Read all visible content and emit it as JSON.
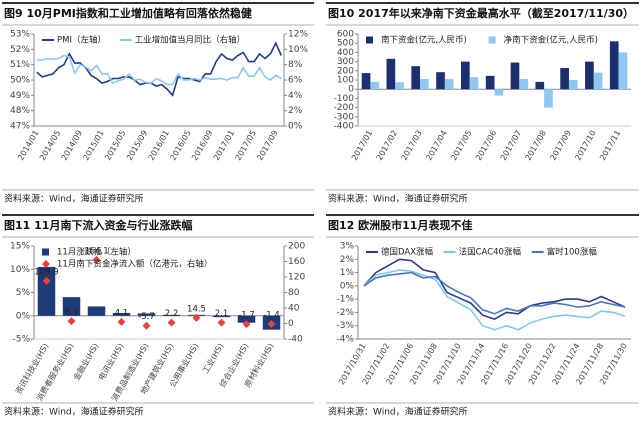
{
  "chart_data": [
    {
      "type": "line",
      "title": "图9 10月PMI指数和工业增加值略有回落依然稳健",
      "source": "资料来源：Wind，海通证券研究所",
      "categories": [
        "2014/01",
        null,
        null,
        null,
        "2014/05",
        null,
        null,
        null,
        "2014/09",
        null,
        null,
        null,
        "2015/01",
        null,
        null,
        null,
        "2015/05",
        null,
        null,
        null,
        "2015/09",
        null,
        null,
        null,
        "2016/01",
        null,
        null,
        null,
        "2016/05",
        null,
        null,
        null,
        "2016/09",
        null,
        null,
        null,
        "2017/01",
        null,
        null,
        null,
        "2017/05",
        null,
        null,
        null,
        "2017/09",
        null
      ],
      "series": [
        {
          "name": "PMI（左轴）",
          "color": "#1f3a8a",
          "values": [
            50.5,
            50.2,
            50.3,
            50.4,
            50.8,
            51.0,
            51.7,
            51.1,
            51.1,
            50.8,
            50.3,
            50.1,
            49.8,
            49.9,
            50.1,
            50.1,
            50.2,
            50.2,
            50.0,
            49.7,
            49.8,
            49.8,
            49.6,
            49.7,
            49.4,
            49.0,
            50.2,
            50.1,
            50.1,
            50.0,
            49.9,
            50.4,
            50.4,
            51.2,
            51.7,
            51.4,
            51.3,
            51.6,
            51.8,
            51.2,
            51.2,
            51.7,
            51.4,
            51.7,
            52.4,
            51.6
          ]
        },
        {
          "name": "工业增加值当月同比（右轴）",
          "color": "#8ec8ee",
          "axis": "y2",
          "values": [
            8.6,
            8.6,
            8.8,
            8.7,
            8.8,
            9.2,
            9.0,
            6.9,
            8.0,
            7.7,
            7.2,
            7.9,
            6.8,
            6.8,
            5.6,
            5.9,
            6.1,
            6.8,
            6.0,
            6.1,
            5.7,
            5.6,
            6.2,
            5.9,
            5.4,
            5.4,
            6.8,
            6.0,
            6.0,
            6.2,
            6.0,
            6.3,
            6.1,
            6.1,
            6.2,
            6.0,
            6.3,
            6.3,
            7.6,
            6.5,
            6.5,
            7.6,
            6.4,
            6.0,
            6.6,
            6.2
          ]
        }
      ],
      "ylim": [
        47,
        53
      ],
      "yticks": [
        {
          "value": 47,
          "label": "47%"
        },
        {
          "value": 48,
          "label": "48%"
        },
        {
          "value": 49,
          "label": "49%"
        },
        {
          "value": 50,
          "label": "50%"
        },
        {
          "value": 51,
          "label": "51%"
        },
        {
          "value": 52,
          "label": "52%"
        },
        {
          "value": 53,
          "label": "53%"
        }
      ],
      "y2lim": [
        0,
        12
      ],
      "y2ticks": [
        {
          "value": 0,
          "label": "0%"
        },
        {
          "value": 2,
          "label": "2%"
        },
        {
          "value": 4,
          "label": "4%"
        },
        {
          "value": 6,
          "label": "6%"
        },
        {
          "value": 8,
          "label": "8%"
        },
        {
          "value": 10,
          "label": "10%"
        },
        {
          "value": 12,
          "label": "12%"
        }
      ],
      "legend": "top"
    },
    {
      "type": "bar",
      "title": "图10 2017年以来净南下资金最高水平（截至2017/11/30）",
      "source": "资料来源：Wind，海通证券研究所",
      "categories": [
        "2017/01",
        "2017/02",
        "2017/03",
        "2017/04",
        "2017/05",
        "2017/06",
        "2017/07",
        "2017/08",
        "2017/09",
        "2017/10",
        "2017/11"
      ],
      "series": [
        {
          "name": "南下资金(亿元,人民币)",
          "color": "#1c2f6e",
          "values": [
            175,
            330,
            250,
            185,
            300,
            145,
            290,
            80,
            230,
            300,
            520
          ]
        },
        {
          "name": "净南下资金(亿元,人民币)",
          "color": "#8ec8f0",
          "values": [
            80,
            75,
            110,
            110,
            130,
            -70,
            110,
            -200,
            100,
            180,
            400
          ]
        }
      ],
      "ylim": [
        -400,
        600
      ],
      "yticks": [
        -400,
        -300,
        -200,
        -100,
        0,
        100,
        200,
        300,
        400,
        500,
        600
      ],
      "legend": "top"
    },
    {
      "type": "bar",
      "title": "图11 11月南下流入资金与行业涨跌幅",
      "source": "资料来源：Wind，海通证券研究所",
      "categories": [
        "资讯科技业(HS)",
        "消费者服务业(HS)",
        "金融业(HS)",
        "电讯业(HS)",
        "消费品制造业(HS)",
        "地产建筑业(HS)",
        "公用事业(HS)",
        "工业(HS)",
        "综合企业(HS)",
        "原材料业(HS)"
      ],
      "series": [
        {
          "name": "11月涨跌幅（左轴）",
          "color": "#1f3a78",
          "values": [
            10.5,
            4.0,
            2.0,
            0.6,
            0.5,
            0.2,
            0.2,
            -0.3,
            -1.5,
            -3.0
          ]
        },
        {
          "name": "11月南下资金净流入额（亿港元，右轴）",
          "color": "#e8423b",
          "type": "marker",
          "axis": "y2",
          "data_labels": true,
          "values": [
            109.9,
            6.1,
            164.1,
            4.1,
            -5.7,
            2.2,
            14.5,
            2.1,
            -1.7,
            -1.4
          ]
        }
      ],
      "ylim": [
        -5,
        15
      ],
      "yticks": [
        {
          "value": -5,
          "label": "-5%"
        },
        {
          "value": 0,
          "label": "0%"
        },
        {
          "value": 5,
          "label": "5%"
        },
        {
          "value": 10,
          "label": "10%"
        },
        {
          "value": 15,
          "label": "15%"
        }
      ],
      "y2lim": [
        -40,
        200
      ],
      "y2ticks": [
        -40,
        0,
        40,
        80,
        120,
        160,
        200
      ],
      "legend": "top"
    },
    {
      "type": "line",
      "title": "图12 欧洲股市11月表现不佳",
      "source": "资料来源：Wind，海通证券研究所",
      "categories": [
        "2017/10/31",
        null,
        "2017/11/02",
        null,
        "2017/11/06",
        null,
        "2017/11/08",
        null,
        "2017/11/10",
        null,
        "2017/11/14",
        null,
        "2017/11/16",
        null,
        "2017/11/20",
        null,
        "2017/11/22",
        null,
        "2017/11/24",
        null,
        "2017/11/28",
        null,
        "2017/11/30"
      ],
      "series": [
        {
          "name": "德国DAX涨幅",
          "color": "#2b3a8c",
          "values": [
            0.0,
            1.0,
            1.5,
            2.0,
            1.9,
            1.2,
            1.0,
            -0.5,
            -0.9,
            -1.3,
            -2.2,
            -2.5,
            -2.0,
            -2.1,
            -1.5,
            -1.3,
            -1.2,
            -1.0,
            -1.0,
            -1.2,
            -0.8,
            -1.2,
            -1.6
          ]
        },
        {
          "name": "法国CAC40涨幅",
          "color": "#7ecbe8",
          "values": [
            0.0,
            0.8,
            1.0,
            1.2,
            1.1,
            0.8,
            0.5,
            -0.8,
            -1.3,
            -1.8,
            -3.0,
            -3.3,
            -3.0,
            -3.3,
            -2.8,
            -2.5,
            -2.3,
            -2.2,
            -2.3,
            -2.4,
            -1.9,
            -2.0,
            -2.3
          ]
        },
        {
          "name": "富时100涨幅",
          "color": "#4a78c0",
          "values": [
            0.0,
            0.6,
            0.8,
            0.9,
            1.0,
            0.6,
            0.7,
            0.0,
            -0.5,
            -0.9,
            -1.8,
            -2.1,
            -1.7,
            -1.9,
            -1.5,
            -1.5,
            -1.3,
            -1.4,
            -1.6,
            -1.5,
            -1.2,
            -1.4,
            -1.6
          ]
        }
      ],
      "ylim": [
        -4,
        3
      ],
      "yticks": [
        {
          "value": -4,
          "label": "-4%"
        },
        {
          "value": -3,
          "label": "-3%"
        },
        {
          "value": -2,
          "label": "-2%"
        },
        {
          "value": -1,
          "label": "-1%"
        },
        {
          "value": 0,
          "label": "0%"
        },
        {
          "value": 1,
          "label": "1%"
        },
        {
          "value": 2,
          "label": "2%"
        },
        {
          "value": 3,
          "label": "3%"
        }
      ],
      "legend": "top"
    }
  ]
}
